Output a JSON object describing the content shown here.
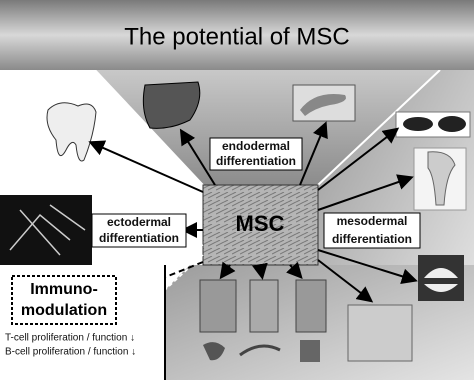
{
  "header": {
    "title": "The potential of MSC"
  },
  "center": {
    "label": "MSC"
  },
  "branches": [
    {
      "lines": [
        "endodermal",
        "differentiation"
      ]
    },
    {
      "lines": [
        "ectodermal",
        "differentiation"
      ]
    },
    {
      "lines": [
        "mesodermal",
        "differentiation"
      ]
    }
  ],
  "immuno": {
    "lines": [
      "Immuno-",
      "modulation"
    ],
    "effects": [
      "T-cell proliferation / function ↓",
      "B-cell proliferation / function ↓"
    ]
  }
}
